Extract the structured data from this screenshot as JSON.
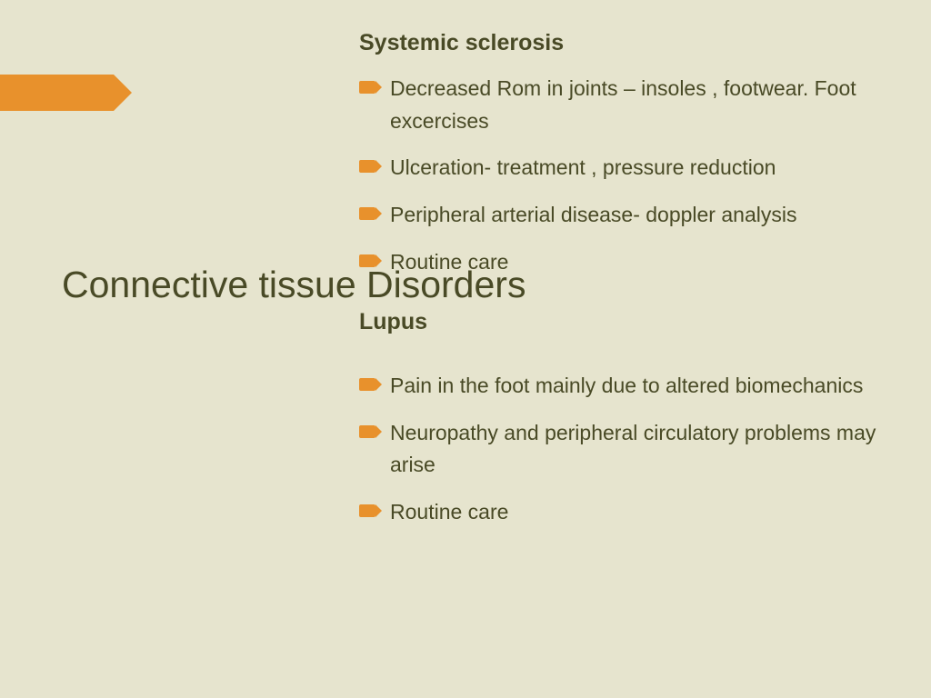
{
  "colors": {
    "background": "#e6e4ce",
    "accent": "#e8912c",
    "text": "#494a26"
  },
  "slide_title": "Connective tissue Disorders",
  "sections": [
    {
      "heading": "Systemic sclerosis",
      "items": [
        "Decreased Rom in joints – insoles , footwear. Foot excercises",
        "Ulceration- treatment , pressure reduction",
        "Peripheral arterial disease- doppler analysis",
        "Routine care"
      ]
    },
    {
      "heading": "Lupus",
      "items": [
        "Pain in the foot mainly due to altered biomechanics",
        "Neuropathy and peripheral circulatory problems may arise",
        "Routine care"
      ]
    }
  ]
}
